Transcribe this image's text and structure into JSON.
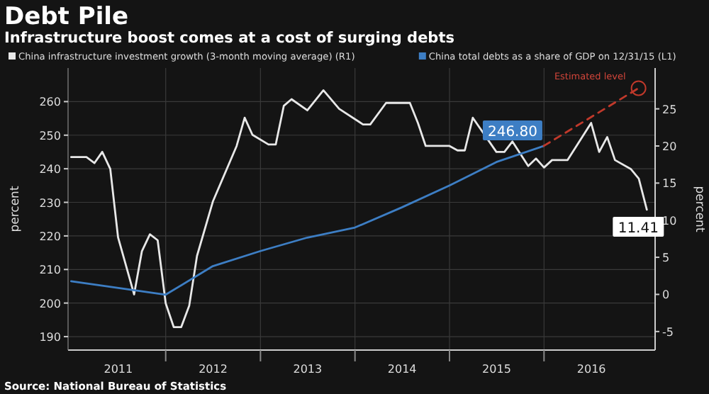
{
  "chart_data": {
    "type": "line",
    "title": "Debt Pile",
    "subtitle": "Infrastructure boost comes at a cost of surging debts",
    "ylabel": "percent",
    "y2label": "percent",
    "xlim": [
      "2010-12-20",
      "2017-03-05"
    ],
    "xticks": [
      {
        "value": "2011-07-02",
        "label": "2011"
      },
      {
        "value": "2012-01-01",
        "label": null
      },
      {
        "value": "2012-07-02",
        "label": "2012"
      },
      {
        "value": "2013-01-01",
        "label": null
      },
      {
        "value": "2013-07-02",
        "label": "2013"
      },
      {
        "value": "2014-01-01",
        "label": null
      },
      {
        "value": "2014-07-02",
        "label": "2014"
      },
      {
        "value": "2015-01-01",
        "label": null
      },
      {
        "value": "2015-07-02",
        "label": "2015"
      },
      {
        "value": "2016-01-01",
        "label": null
      },
      {
        "value": "2016-07-02",
        "label": "2016"
      }
    ],
    "ylim": [
      186,
      270
    ],
    "yticks": [
      190,
      200,
      210,
      220,
      230,
      240,
      250,
      260
    ],
    "y2lim": [
      -7.5,
      30.5
    ],
    "y2ticks": [
      -5,
      0,
      5,
      10,
      15,
      20,
      25
    ],
    "grid": true,
    "legend": "top left",
    "line_style": "solid",
    "series": [
      {
        "name": "China infrastructure investment growth (3-month moving average) (R1)",
        "color": "#e8e8e8",
        "axis": "y2",
        "x": [
          "2011-01",
          "2011-03",
          "2011-04",
          "2011-05",
          "2011-06",
          "2011-07",
          "2011-09",
          "2011-10",
          "2011-11",
          "2011-12",
          "2012-01",
          "2012-02",
          "2012-03",
          "2012-04",
          "2012-05",
          "2012-07",
          "2012-10",
          "2012-11",
          "2012-12",
          "2013-02",
          "2013-03",
          "2013-04",
          "2013-05",
          "2013-07",
          "2013-09",
          "2013-11",
          "2014-02",
          "2014-03",
          "2014-05",
          "2014-08",
          "2014-09",
          "2014-10",
          "2015-01",
          "2015-02",
          "2015-03",
          "2015-04",
          "2015-07",
          "2015-08",
          "2015-09",
          "2015-11",
          "2015-12",
          "2016-01",
          "2016-02",
          "2016-04",
          "2016-07",
          "2016-08",
          "2016-09",
          "2016-10",
          "2016-12",
          "2017-01",
          "2017-02"
        ],
        "values": [
          18.5,
          18.5,
          17.7,
          19.2,
          16.9,
          7.7,
          0,
          5.8,
          8.1,
          7.3,
          -1.2,
          -4.4,
          -4.4,
          -1.5,
          5.2,
          12.5,
          20,
          23.8,
          21.5,
          20.2,
          20.2,
          25.4,
          26.3,
          24.8,
          27.5,
          25,
          22.9,
          22.9,
          25.8,
          25.8,
          23.1,
          20,
          20,
          19.4,
          19.4,
          23.8,
          19.2,
          19.2,
          20.6,
          17.3,
          18.3,
          17.1,
          18.1,
          18.1,
          23.1,
          19.2,
          21.2,
          18.1,
          16.9,
          15.6,
          11.41
        ],
        "value_labels": [
          null,
          null,
          null,
          null,
          null,
          null,
          null,
          null,
          null,
          null,
          null,
          null,
          null,
          null,
          null,
          null,
          null,
          null,
          null,
          null,
          null,
          null,
          null,
          null,
          null,
          null,
          null,
          null,
          null,
          null,
          null,
          null,
          null,
          null,
          null,
          null,
          null,
          null,
          null,
          null,
          null,
          null,
          null,
          null,
          null,
          null,
          null,
          null,
          null,
          null,
          "11.41"
        ]
      },
      {
        "name": "China total debts as a share of GDP on 12/31/15 (L1)",
        "color": "#3d7ec4",
        "axis": "y",
        "x": [
          "2011-01-01",
          "2012-01-01",
          "2012-07-01",
          "2013-01-01",
          "2013-07-01",
          "2014-01-01",
          "2014-07-01",
          "2015-01-01",
          "2015-07-01",
          "2015-12-31"
        ],
        "values": [
          206.5,
          202.5,
          211,
          215.5,
          219.5,
          222.5,
          228.5,
          235,
          242,
          246.8
        ],
        "value_labels": [
          null,
          null,
          null,
          null,
          null,
          null,
          null,
          null,
          null,
          "246.80"
        ]
      },
      {
        "color": "#c0392b",
        "axis": "y",
        "line_style": "dashed",
        "x": [
          "2015-12-31",
          "2016-12-31"
        ],
        "values": [
          246.8,
          264
        ]
      }
    ],
    "annotations": [
      {
        "text": "Estimated level",
        "x": "2016-12-31",
        "y": 264
      },
      "Source: National Bureau of Statistics"
    ]
  }
}
